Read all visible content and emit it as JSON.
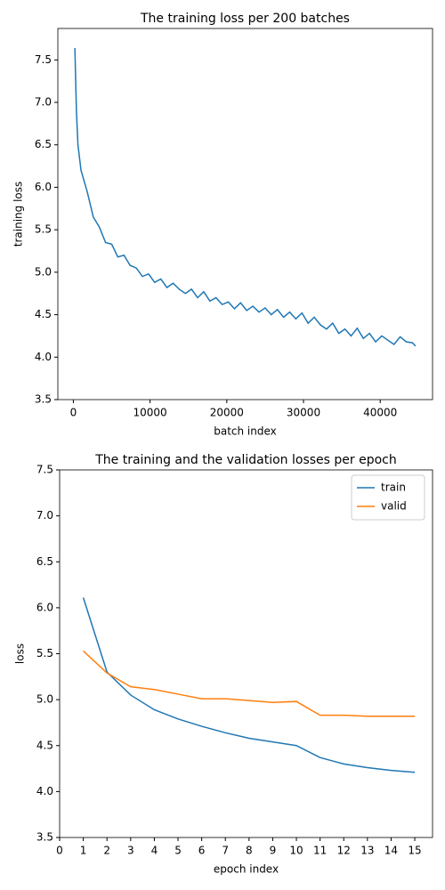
{
  "chart_data": [
    {
      "type": "line",
      "title": "The training loss per 200 batches",
      "xlabel": "batch index",
      "ylabel": "training loss",
      "x": [
        200,
        400,
        600,
        1000,
        1800,
        2600,
        3400,
        4200,
        5000,
        5800,
        6600,
        7400,
        8200,
        9000,
        9800,
        10600,
        11400,
        12200,
        13000,
        13800,
        14600,
        15400,
        16200,
        17000,
        17800,
        18600,
        19400,
        20200,
        21000,
        21800,
        22600,
        23400,
        24200,
        25000,
        25800,
        26600,
        27400,
        28200,
        29000,
        29800,
        30600,
        31400,
        32200,
        33000,
        33800,
        34600,
        35400,
        36200,
        37000,
        37800,
        38600,
        39400,
        40200,
        41000,
        41800,
        42600,
        43400,
        44200,
        44600
      ],
      "series": [
        {
          "name": "training loss",
          "color": "#1f77b4",
          "values": [
            7.64,
            6.9,
            6.5,
            6.2,
            5.95,
            5.65,
            5.53,
            5.35,
            5.33,
            5.18,
            5.2,
            5.08,
            5.05,
            4.95,
            4.98,
            4.88,
            4.92,
            4.82,
            4.87,
            4.8,
            4.75,
            4.8,
            4.7,
            4.77,
            4.66,
            4.7,
            4.62,
            4.65,
            4.57,
            4.64,
            4.55,
            4.6,
            4.53,
            4.58,
            4.5,
            4.56,
            4.47,
            4.53,
            4.45,
            4.52,
            4.4,
            4.47,
            4.38,
            4.33,
            4.4,
            4.28,
            4.33,
            4.25,
            4.34,
            4.22,
            4.28,
            4.18,
            4.25,
            4.2,
            4.15,
            4.24,
            4.18,
            4.17,
            4.13
          ]
        }
      ],
      "xlim": [
        -2020,
        46820
      ],
      "xticks": [
        0,
        10000,
        20000,
        30000,
        40000
      ],
      "ylim": [
        3.5,
        7.87
      ],
      "yticks": [
        3.5,
        {
          "value": 4,
          "label": "4.0"
        },
        4.5,
        {
          "value": 5,
          "label": "5.0"
        },
        5.5,
        {
          "value": 6,
          "label": "6.0"
        },
        6.5,
        {
          "value": 7,
          "label": "7.0"
        },
        7.5
      ]
    },
    {
      "type": "line",
      "title": "The training and the validation losses per epoch",
      "xlabel": "epoch index",
      "ylabel": "loss",
      "legend": "upper right",
      "x": [
        1,
        2,
        3,
        4,
        5,
        6,
        7,
        8,
        9,
        10,
        11,
        12,
        13,
        14,
        15
      ],
      "series": [
        {
          "name": "train",
          "color": "#1f77b4",
          "values": [
            6.11,
            5.3,
            5.05,
            4.89,
            4.79,
            4.71,
            4.64,
            4.58,
            4.54,
            4.5,
            4.37,
            4.3,
            4.26,
            4.23,
            4.21
          ]
        },
        {
          "name": "valid",
          "color": "#ff7f0e",
          "values": [
            5.53,
            5.29,
            5.14,
            5.11,
            5.06,
            5.01,
            5.01,
            4.99,
            4.97,
            4.98,
            4.83,
            4.83,
            4.82,
            4.82,
            4.82
          ]
        }
      ],
      "xlim": [
        0,
        15.75
      ],
      "xticks": [
        0,
        1,
        2,
        3,
        4,
        5,
        6,
        7,
        8,
        9,
        10,
        11,
        12,
        13,
        14,
        15
      ],
      "ylim": [
        3.5,
        7.5
      ],
      "yticks": [
        3.5,
        {
          "value": 4,
          "label": "4.0"
        },
        4.5,
        {
          "value": 5,
          "label": "5.0"
        },
        5.5,
        {
          "value": 6,
          "label": "6.0"
        },
        6.5,
        {
          "value": 7,
          "label": "7.0"
        },
        7.5
      ]
    }
  ]
}
